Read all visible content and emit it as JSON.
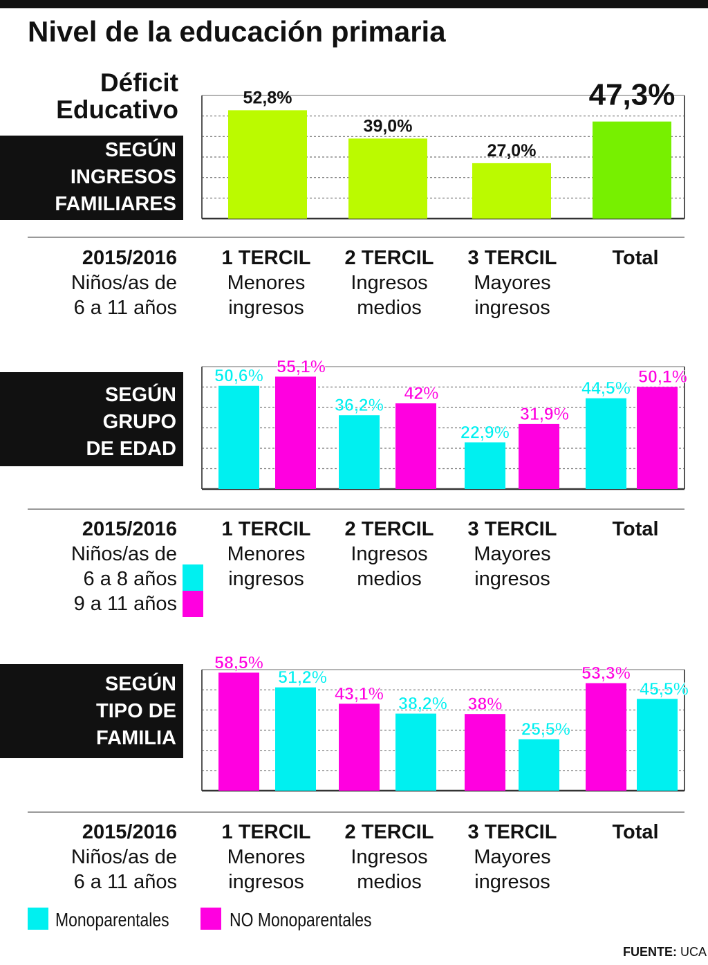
{
  "title": "Nivel de la educación primaria",
  "subtitle_lines": [
    "Déficit",
    "Educativo"
  ],
  "source": {
    "label": "FUENTE:",
    "value": "UCA"
  },
  "colors": {
    "lime": "#bbfa00",
    "green": "#77f000",
    "cyan": "#00f0f0",
    "magenta": "#ff00e0"
  },
  "caption_columns": [
    {
      "bold": "1 TERCIL",
      "l1": "Menores",
      "l2": "ingresos"
    },
    {
      "bold": "2 TERCIL",
      "l1": "Ingresos",
      "l2": "medios"
    },
    {
      "bold": "3 TERCIL",
      "l1": "Mayores",
      "l2": "ingresos"
    },
    {
      "bold": "Total",
      "l1": "",
      "l2": ""
    }
  ],
  "panel1": {
    "box_lines": [
      "SEGÚN",
      "INGRESOS",
      "FAMILIARES"
    ],
    "year": "2015/2016",
    "l1": "Niños/as de",
    "l2": "6 a 11 años"
  },
  "panel2": {
    "box_lines": [
      "SEGÚN",
      "GRUPO",
      "DE EDAD"
    ],
    "year": "2015/2016",
    "l1": "Niños/as de",
    "l2": "6 a 8 años",
    "l3": "9 a 11 años"
  },
  "panel3": {
    "box_lines": [
      "SEGÚN",
      "TIPO DE",
      "FAMILIA"
    ],
    "year": "2015/2016",
    "l1": "Niños/as de",
    "l2": "6 a 11 años"
  },
  "legend3": {
    "mono": "Monoparentales",
    "nomono": "NO Monoparentales"
  },
  "chart_data": [
    {
      "type": "bar",
      "categories": [
        "1 TERCIL",
        "2 TERCIL",
        "3 TERCIL",
        "Total"
      ],
      "values": [
        52.8,
        39.0,
        27.0,
        47.3
      ],
      "labels": [
        "52,8%",
        "39,0%",
        "27,0%",
        "47,3%"
      ],
      "colors": [
        "#bbfa00",
        "#bbfa00",
        "#bbfa00",
        "#77f000"
      ],
      "ylim": [
        0,
        60
      ]
    },
    {
      "type": "bar",
      "categories": [
        "1 TERCIL",
        "2 TERCIL",
        "3 TERCIL",
        "Total"
      ],
      "series": [
        {
          "name": "6 a 8 años",
          "color": "#00f0f0",
          "values": [
            50.6,
            36.2,
            22.9,
            44.5
          ],
          "labels": [
            "50,6%",
            "36,2%",
            "22,9%",
            "44,5%"
          ]
        },
        {
          "name": "9 a 11 años",
          "color": "#ff00e0",
          "values": [
            55.1,
            42,
            31.9,
            50.1
          ],
          "labels": [
            "55,1%",
            "42%",
            "31,9%",
            "50,1%"
          ]
        }
      ],
      "ylim": [
        0,
        60
      ]
    },
    {
      "type": "bar",
      "categories": [
        "1 TERCIL",
        "2 TERCIL",
        "3 TERCIL",
        "Total"
      ],
      "series": [
        {
          "name": "NO Monoparentales",
          "color": "#ff00e0",
          "values": [
            58.5,
            43.1,
            38,
            53.3
          ],
          "labels": [
            "58,5%",
            "43,1%",
            "38%",
            "53,3%"
          ]
        },
        {
          "name": "Monoparentales",
          "color": "#00f0f0",
          "values": [
            51.2,
            38.2,
            25.5,
            45.5
          ],
          "labels": [
            "51,2%",
            "38,2%",
            "25,5%",
            "45,5%"
          ]
        }
      ],
      "ylim": [
        0,
        60
      ]
    }
  ]
}
